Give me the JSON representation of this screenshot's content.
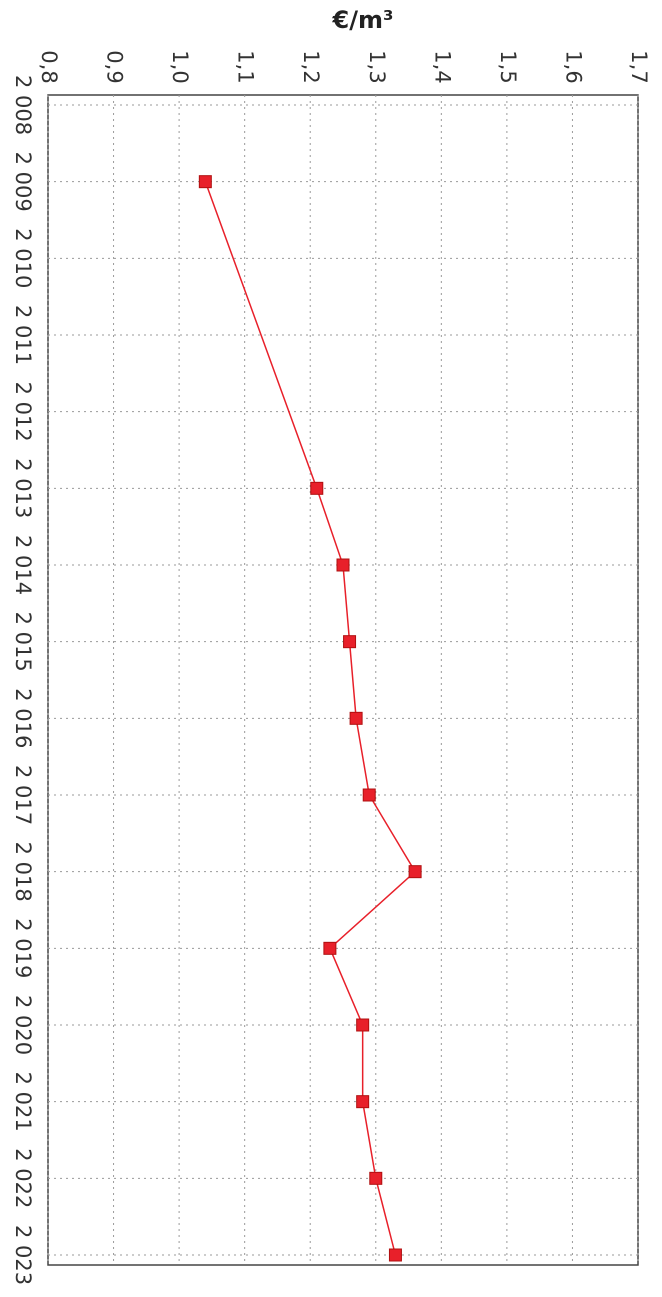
{
  "chart_data": {
    "type": "line",
    "ylabel": "€/m³",
    "xlabel": "",
    "ylim": [
      0.8,
      1.7
    ],
    "y_ticks": [
      "0,8",
      "0,9",
      "1,0",
      "1,1",
      "1,2",
      "1,3",
      "1,4",
      "1,5",
      "1,6",
      "1,7"
    ],
    "categories": [
      "2 008",
      "2 009",
      "2 010",
      "2 011",
      "2 012",
      "2 013",
      "2 014",
      "2 015",
      "2 016",
      "2 017",
      "2 018",
      "2 019",
      "2 020",
      "2 021",
      "2 022",
      "2 023"
    ],
    "series": [
      {
        "color": "#e8202a",
        "marker": "square",
        "points": [
          {
            "x": "2 009",
            "y": 1.04
          },
          {
            "x": "2 013",
            "y": 1.21
          },
          {
            "x": "2 014",
            "y": 1.25
          },
          {
            "x": "2 015",
            "y": 1.26
          },
          {
            "x": "2 016",
            "y": 1.27
          },
          {
            "x": "2 017",
            "y": 1.29
          },
          {
            "x": "2 018",
            "y": 1.36
          },
          {
            "x": "2 019",
            "y": 1.23
          },
          {
            "x": "2 020",
            "y": 1.28
          },
          {
            "x": "2 021",
            "y": 1.28
          },
          {
            "x": "2 022",
            "y": 1.3
          },
          {
            "x": "2 023",
            "y": 1.33
          }
        ]
      }
    ],
    "grid": true,
    "orientation": "rotated 90 degrees clockwise"
  }
}
